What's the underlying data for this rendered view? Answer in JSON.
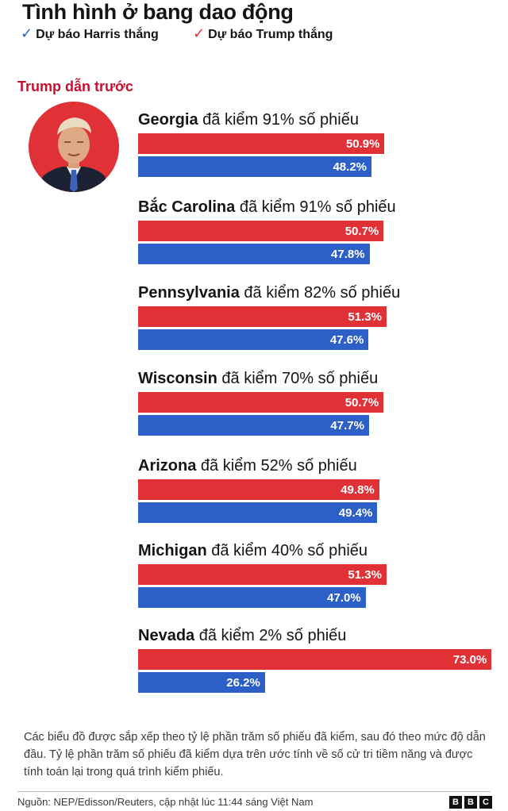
{
  "title": "Tình hình ở bang dao động",
  "legend": {
    "harris": "Dự báo Harris thắng",
    "trump": "Dự báo Trump thắng"
  },
  "leader_label": "Trump dẫn trước",
  "colors": {
    "trump": "#e03137",
    "harris": "#2d5fc9",
    "accent": "#c8102e"
  },
  "chart_data": {
    "type": "bar",
    "orientation": "horizontal",
    "title": "Tình hình ở bang dao động",
    "xlim": [
      0,
      75
    ],
    "counted_suffix": "đã kiểm",
    "counted_tail": "số phiếu",
    "categories": [
      "Georgia",
      "Bắc Carolina",
      "Pennsylvania",
      "Wisconsin",
      "Arizona",
      "Michigan",
      "Nevada"
    ],
    "counted": [
      "91%",
      "91%",
      "82%",
      "70%",
      "52%",
      "40%",
      "2%"
    ],
    "series": [
      {
        "name": "Trump",
        "values": [
          50.9,
          50.7,
          51.3,
          50.7,
          49.8,
          51.3,
          73.0
        ],
        "labels": [
          "50.9%",
          "50.7%",
          "51.3%",
          "50.7%",
          "49.8%",
          "51.3%",
          "73.0%"
        ]
      },
      {
        "name": "Harris",
        "values": [
          48.2,
          47.8,
          47.6,
          47.7,
          49.4,
          47.0,
          26.2
        ],
        "labels": [
          "48.2%",
          "47.8%",
          "47.6%",
          "47.7%",
          "49.4%",
          "47.0%",
          "26.2%"
        ]
      }
    ]
  },
  "footnote": "Các biểu đồ được sắp xếp theo tỷ lệ phần trăm số phiếu đã kiểm, sau đó theo mức độ dẫn đầu. Tỷ lệ phần trăm số phiếu đã kiểm dựa trên ước tính về số cử tri tiềm năng và được tính toán lại trong quá trình kiểm phiếu.",
  "source": "Nguồn: NEP/Edisson/Reuters, cập nhật lúc 11:44 sáng Việt Nam",
  "logo": [
    "B",
    "B",
    "C"
  ]
}
